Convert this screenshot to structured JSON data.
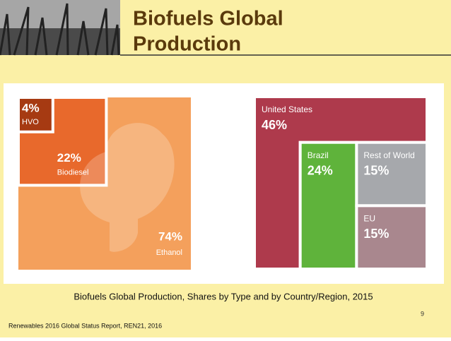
{
  "slide": {
    "title_lines": [
      "Biofuels Global",
      "Production"
    ],
    "caption": "Biofuels Global Production, Shares by Type and by Country/Region, 2015",
    "page_number": "9",
    "source": "Renewables 2016 Global Status Report, REN21, 2016"
  },
  "chart_data": [
    {
      "type": "nested-square",
      "categories": [
        "HVO",
        "Biodiesel",
        "Ethanol"
      ],
      "values": [
        4,
        22,
        74
      ],
      "value_labels": [
        "4%",
        "22%",
        "74%"
      ],
      "colors": [
        "#a63a12",
        "#e8692c",
        "#f4a05c"
      ]
    },
    {
      "type": "treemap",
      "categories": [
        "United States",
        "Brazil",
        "Rest of World",
        "EU"
      ],
      "values": [
        46,
        24,
        15,
        15
      ],
      "value_labels": [
        "46%",
        "24%",
        "15%",
        "15%"
      ],
      "colors": [
        "#ae3a4c",
        "#5fb33b",
        "#a6a8ac",
        "#a9878e"
      ]
    }
  ]
}
